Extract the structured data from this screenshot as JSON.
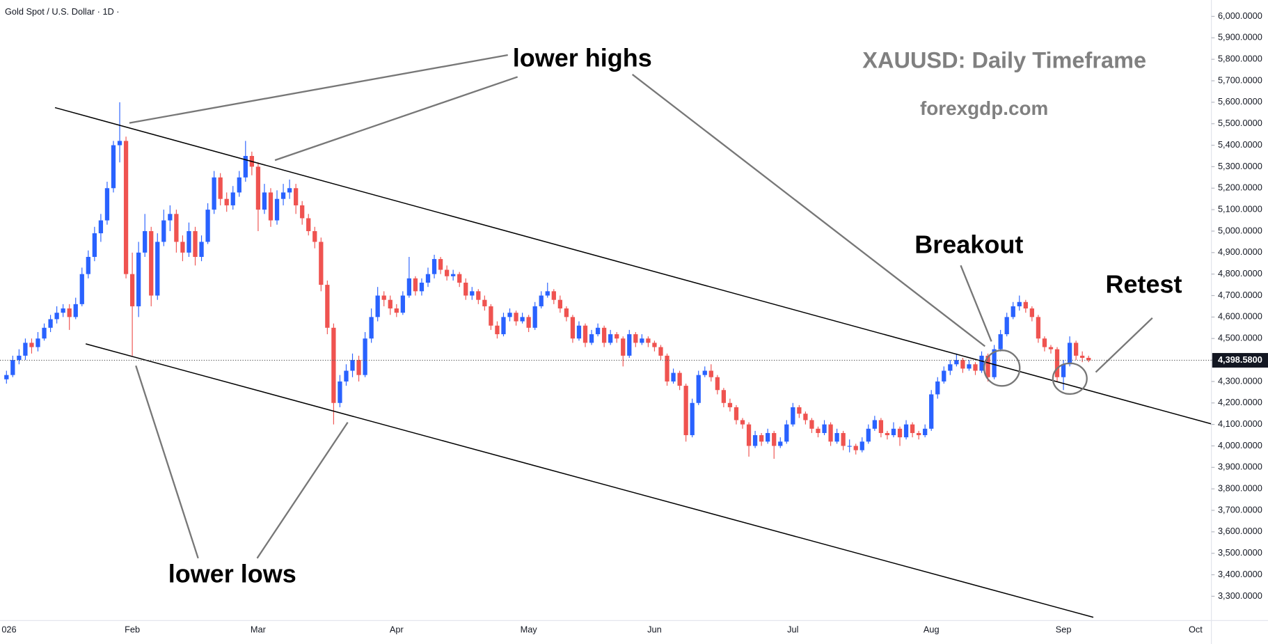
{
  "chart_data": {
    "type": "candlestick",
    "title": "XAUUSD: Daily Timeframe",
    "subtitle": "forexgdp.com",
    "symbol_label": "Gold Spot / U.S. Dollar · 1D ·",
    "annotations": [
      "lower highs",
      "lower lows",
      "Breakout",
      "Retest"
    ],
    "up_color": "#2962ff",
    "down_color": "#ef5350",
    "ylim": [
      3187,
      6076
    ],
    "yticks": [
      {
        "value": 3300,
        "label": "3,300.0000"
      },
      {
        "value": 3400,
        "label": "3,400.0000"
      },
      {
        "value": 3500,
        "label": "3,500.0000"
      },
      {
        "value": 3600,
        "label": "3,600.0000"
      },
      {
        "value": 3700,
        "label": "3,700.0000"
      },
      {
        "value": 3800,
        "label": "3,800.0000"
      },
      {
        "value": 3900,
        "label": "3,900.0000"
      },
      {
        "value": 4000,
        "label": "4,000.0000"
      },
      {
        "value": 4100,
        "label": "4,100.0000"
      },
      {
        "value": 4200,
        "label": "4,200.0000"
      },
      {
        "value": 4300,
        "label": "4,300.0000"
      },
      {
        "value": 4400,
        "label": "4,400.0000"
      },
      {
        "value": 4500,
        "label": "4,500.0000"
      },
      {
        "value": 4600,
        "label": "4,600.0000"
      },
      {
        "value": 4700,
        "label": "4,700.0000"
      },
      {
        "value": 4800,
        "label": "4,800.0000"
      },
      {
        "value": 4900,
        "label": "4,900.0000"
      },
      {
        "value": 5000,
        "label": "5,000.0000"
      },
      {
        "value": 5100,
        "label": "5,100.0000"
      },
      {
        "value": 5200,
        "label": "5,200.0000"
      },
      {
        "value": 5300,
        "label": "5,300.0000"
      },
      {
        "value": 5400,
        "label": "5,400.0000"
      },
      {
        "value": 5500,
        "label": "5,500.0000"
      },
      {
        "value": 5600,
        "label": "5,600.0000"
      },
      {
        "value": 5700,
        "label": "5,700.0000"
      },
      {
        "value": 5800,
        "label": "5,800.0000"
      },
      {
        "value": 5900,
        "label": "5,900.0000"
      },
      {
        "value": 6000,
        "label": "6,000.0000"
      }
    ],
    "last_price": {
      "value": 4398.58,
      "label": "4,398.5800"
    },
    "categories": [
      "026",
      null,
      null,
      null,
      null,
      null,
      null,
      null,
      null,
      null,
      null,
      null,
      null,
      null,
      null,
      null,
      null,
      null,
      null,
      null,
      "Feb",
      null,
      null,
      null,
      null,
      null,
      null,
      null,
      null,
      null,
      null,
      null,
      null,
      null,
      null,
      null,
      null,
      null,
      null,
      null,
      "Mar",
      null,
      null,
      null,
      null,
      null,
      null,
      null,
      null,
      null,
      null,
      null,
      null,
      null,
      null,
      null,
      null,
      null,
      null,
      null,
      null,
      null,
      "Apr",
      null,
      null,
      null,
      null,
      null,
      null,
      null,
      null,
      null,
      null,
      null,
      null,
      null,
      null,
      null,
      null,
      null,
      null,
      null,
      null,
      "May",
      null,
      null,
      null,
      null,
      null,
      null,
      null,
      null,
      null,
      null,
      null,
      null,
      null,
      null,
      null,
      null,
      null,
      null,
      null,
      "Jun",
      null,
      null,
      null,
      null,
      null,
      null,
      null,
      null,
      null,
      null,
      null,
      null,
      null,
      null,
      null,
      null,
      null,
      null,
      null,
      null,
      null,
      "Jul",
      null,
      null,
      null,
      null,
      null,
      null,
      null,
      null,
      null,
      null,
      null,
      null,
      null,
      null,
      null,
      null,
      null,
      null,
      null,
      null,
      null,
      "Aug",
      null,
      null,
      null,
      null,
      null,
      null,
      null,
      null,
      null,
      null,
      null,
      null,
      null,
      null,
      null,
      null,
      null,
      null,
      null,
      null,
      "Sep",
      null,
      null,
      null,
      null,
      null,
      null,
      null,
      null,
      null,
      null,
      null,
      null,
      null,
      null,
      null,
      null,
      null,
      null,
      null,
      null,
      "Oct"
    ],
    "ohlc": [
      [
        4310,
        4350,
        4290,
        4330
      ],
      [
        4330,
        4420,
        4320,
        4400
      ],
      [
        4400,
        4450,
        4380,
        4420
      ],
      [
        4420,
        4500,
        4400,
        4480
      ],
      [
        4480,
        4500,
        4430,
        4460
      ],
      [
        4460,
        4530,
        4440,
        4500
      ],
      [
        4500,
        4570,
        4490,
        4550
      ],
      [
        4550,
        4610,
        4530,
        4590
      ],
      [
        4590,
        4650,
        4570,
        4620
      ],
      [
        4620,
        4660,
        4600,
        4640
      ],
      [
        4640,
        4660,
        4540,
        4600
      ],
      [
        4600,
        4690,
        4590,
        4660
      ],
      [
        4660,
        4830,
        4650,
        4800
      ],
      [
        4800,
        4910,
        4780,
        4880
      ],
      [
        4880,
        5020,
        4860,
        4990
      ],
      [
        4990,
        5080,
        4950,
        5050
      ],
      [
        5050,
        5230,
        5030,
        5200
      ],
      [
        5200,
        5420,
        5180,
        5400
      ],
      [
        5400,
        5600,
        5320,
        5420
      ],
      [
        5420,
        5440,
        4780,
        4800
      ],
      [
        4800,
        4900,
        4420,
        4650
      ],
      [
        4650,
        4950,
        4600,
        4900
      ],
      [
        4900,
        5080,
        4880,
        5000
      ],
      [
        5000,
        5020,
        4650,
        4700
      ],
      [
        4700,
        4990,
        4680,
        4950
      ],
      [
        4950,
        5100,
        4930,
        5050
      ],
      [
        5050,
        5120,
        5000,
        5080
      ],
      [
        5080,
        5100,
        4900,
        4950
      ],
      [
        4950,
        4980,
        4860,
        4900
      ],
      [
        4900,
        5040,
        4880,
        5000
      ],
      [
        5000,
        5020,
        4840,
        4880
      ],
      [
        4880,
        4980,
        4860,
        4950
      ],
      [
        4950,
        5130,
        4940,
        5100
      ],
      [
        5100,
        5280,
        5080,
        5250
      ],
      [
        5250,
        5270,
        5120,
        5150
      ],
      [
        5150,
        5180,
        5090,
        5120
      ],
      [
        5120,
        5210,
        5100,
        5180
      ],
      [
        5180,
        5280,
        5160,
        5250
      ],
      [
        5250,
        5420,
        5230,
        5350
      ],
      [
        5350,
        5370,
        5260,
        5300
      ],
      [
        5300,
        5320,
        5000,
        5100
      ],
      [
        5100,
        5220,
        5080,
        5180
      ],
      [
        5180,
        5200,
        5020,
        5050
      ],
      [
        5050,
        5190,
        5030,
        5150
      ],
      [
        5150,
        5220,
        5120,
        5180
      ],
      [
        5180,
        5240,
        5150,
        5200
      ],
      [
        5200,
        5220,
        5080,
        5120
      ],
      [
        5120,
        5140,
        5030,
        5060
      ],
      [
        5060,
        5080,
        4980,
        5000
      ],
      [
        5000,
        5020,
        4920,
        4950
      ],
      [
        4950,
        4970,
        4720,
        4750
      ],
      [
        4750,
        4770,
        4520,
        4550
      ],
      [
        4550,
        4570,
        4100,
        4200
      ],
      [
        4200,
        4330,
        4180,
        4300
      ],
      [
        4300,
        4380,
        4280,
        4350
      ],
      [
        4350,
        4430,
        4320,
        4400
      ],
      [
        4400,
        4420,
        4300,
        4330
      ],
      [
        4330,
        4530,
        4320,
        4500
      ],
      [
        4500,
        4640,
        4480,
        4600
      ],
      [
        4600,
        4740,
        4580,
        4700
      ],
      [
        4700,
        4720,
        4650,
        4680
      ],
      [
        4680,
        4700,
        4610,
        4640
      ],
      [
        4640,
        4660,
        4600,
        4620
      ],
      [
        4620,
        4720,
        4610,
        4700
      ],
      [
        4700,
        4880,
        4690,
        4780
      ],
      [
        4780,
        4790,
        4700,
        4720
      ],
      [
        4720,
        4780,
        4700,
        4760
      ],
      [
        4760,
        4830,
        4740,
        4800
      ],
      [
        4800,
        4890,
        4780,
        4870
      ],
      [
        4870,
        4880,
        4800,
        4820
      ],
      [
        4820,
        4840,
        4770,
        4790
      ],
      [
        4790,
        4820,
        4770,
        4800
      ],
      [
        4800,
        4810,
        4740,
        4760
      ],
      [
        4760,
        4780,
        4680,
        4700
      ],
      [
        4700,
        4740,
        4680,
        4720
      ],
      [
        4720,
        4730,
        4660,
        4680
      ],
      [
        4680,
        4700,
        4630,
        4650
      ],
      [
        4650,
        4660,
        4540,
        4560
      ],
      [
        4560,
        4580,
        4500,
        4520
      ],
      [
        4520,
        4620,
        4510,
        4600
      ],
      [
        4600,
        4640,
        4580,
        4620
      ],
      [
        4620,
        4630,
        4560,
        4580
      ],
      [
        4580,
        4620,
        4570,
        4600
      ],
      [
        4600,
        4610,
        4530,
        4550
      ],
      [
        4550,
        4670,
        4540,
        4650
      ],
      [
        4650,
        4720,
        4640,
        4700
      ],
      [
        4700,
        4760,
        4690,
        4720
      ],
      [
        4720,
        4730,
        4660,
        4680
      ],
      [
        4680,
        4700,
        4620,
        4640
      ],
      [
        4640,
        4650,
        4580,
        4600
      ],
      [
        4600,
        4610,
        4480,
        4500
      ],
      [
        4500,
        4580,
        4490,
        4560
      ],
      [
        4560,
        4570,
        4460,
        4480
      ],
      [
        4480,
        4540,
        4470,
        4520
      ],
      [
        4520,
        4570,
        4510,
        4550
      ],
      [
        4550,
        4560,
        4460,
        4480
      ],
      [
        4480,
        4540,
        4470,
        4520
      ],
      [
        4520,
        4530,
        4480,
        4500
      ],
      [
        4500,
        4510,
        4370,
        4420
      ],
      [
        4420,
        4540,
        4410,
        4520
      ],
      [
        4520,
        4530,
        4460,
        4480
      ],
      [
        4480,
        4520,
        4470,
        4500
      ],
      [
        4500,
        4510,
        4460,
        4480
      ],
      [
        4480,
        4490,
        4440,
        4460
      ],
      [
        4460,
        4470,
        4400,
        4420
      ],
      [
        4420,
        4430,
        4280,
        4300
      ],
      [
        4300,
        4360,
        4290,
        4340
      ],
      [
        4340,
        4350,
        4260,
        4280
      ],
      [
        4280,
        4290,
        4020,
        4050
      ],
      [
        4050,
        4220,
        4040,
        4200
      ],
      [
        4200,
        4350,
        4190,
        4330
      ],
      [
        4330,
        4370,
        4320,
        4350
      ],
      [
        4350,
        4380,
        4300,
        4320
      ],
      [
        4320,
        4330,
        4240,
        4260
      ],
      [
        4260,
        4270,
        4180,
        4200
      ],
      [
        4200,
        4220,
        4160,
        4180
      ],
      [
        4180,
        4190,
        4100,
        4120
      ],
      [
        4120,
        4130,
        4080,
        4100
      ],
      [
        4100,
        4110,
        3950,
        4000
      ],
      [
        4000,
        4070,
        3990,
        4050
      ],
      [
        4050,
        4060,
        4000,
        4020
      ],
      [
        4020,
        4080,
        4010,
        4060
      ],
      [
        4060,
        4070,
        3940,
        4000
      ],
      [
        4000,
        4040,
        3990,
        4020
      ],
      [
        4020,
        4120,
        4010,
        4100
      ],
      [
        4100,
        4200,
        4090,
        4180
      ],
      [
        4180,
        4190,
        4130,
        4150
      ],
      [
        4150,
        4160,
        4100,
        4120
      ],
      [
        4120,
        4130,
        4060,
        4080
      ],
      [
        4080,
        4090,
        4040,
        4060
      ],
      [
        4060,
        4120,
        4050,
        4100
      ],
      [
        4100,
        4110,
        4000,
        4020
      ],
      [
        4020,
        4080,
        4010,
        4060
      ],
      [
        4060,
        4070,
        3980,
        4000
      ],
      [
        4000,
        4030,
        3970,
        4000
      ],
      [
        4000,
        4010,
        3960,
        3980
      ],
      [
        3980,
        4040,
        3970,
        4020
      ],
      [
        4020,
        4100,
        4010,
        4080
      ],
      [
        4080,
        4140,
        4070,
        4120
      ],
      [
        4120,
        4130,
        4040,
        4060
      ],
      [
        4060,
        4070,
        4030,
        4050
      ],
      [
        4050,
        4110,
        4040,
        4080
      ],
      [
        4080,
        4090,
        4000,
        4040
      ],
      [
        4040,
        4120,
        4030,
        4100
      ],
      [
        4100,
        4110,
        4040,
        4060
      ],
      [
        4060,
        4070,
        4030,
        4050
      ],
      [
        4050,
        4100,
        4040,
        4080
      ],
      [
        4080,
        4260,
        4070,
        4240
      ],
      [
        4240,
        4320,
        4220,
        4300
      ],
      [
        4300,
        4370,
        4290,
        4350
      ],
      [
        4350,
        4400,
        4330,
        4380
      ],
      [
        4380,
        4430,
        4370,
        4400
      ],
      [
        4400,
        4410,
        4340,
        4360
      ],
      [
        4360,
        4400,
        4350,
        4380
      ],
      [
        4380,
        4390,
        4330,
        4350
      ],
      [
        4350,
        4440,
        4340,
        4420
      ],
      [
        4420,
        4430,
        4300,
        4320
      ],
      [
        4320,
        4470,
        4310,
        4450
      ],
      [
        4450,
        4540,
        4440,
        4520
      ],
      [
        4520,
        4620,
        4510,
        4600
      ],
      [
        4600,
        4670,
        4590,
        4650
      ],
      [
        4650,
        4700,
        4630,
        4670
      ],
      [
        4670,
        4680,
        4620,
        4640
      ],
      [
        4640,
        4650,
        4580,
        4600
      ],
      [
        4600,
        4610,
        4480,
        4500
      ],
      [
        4500,
        4510,
        4440,
        4460
      ],
      [
        4460,
        4470,
        4430,
        4450
      ],
      [
        4450,
        4460,
        4300,
        4320
      ],
      [
        4320,
        4400,
        4260,
        4380
      ],
      [
        4380,
        4510,
        4370,
        4480
      ],
      [
        4480,
        4490,
        4400,
        4420
      ],
      [
        4420,
        4440,
        4390,
        4410
      ],
      [
        4410,
        4420,
        4390,
        4398.58
      ],
      null,
      null,
      null,
      null,
      null,
      null,
      null,
      null,
      null,
      null,
      null,
      null,
      null,
      null,
      null,
      null,
      null
    ]
  }
}
